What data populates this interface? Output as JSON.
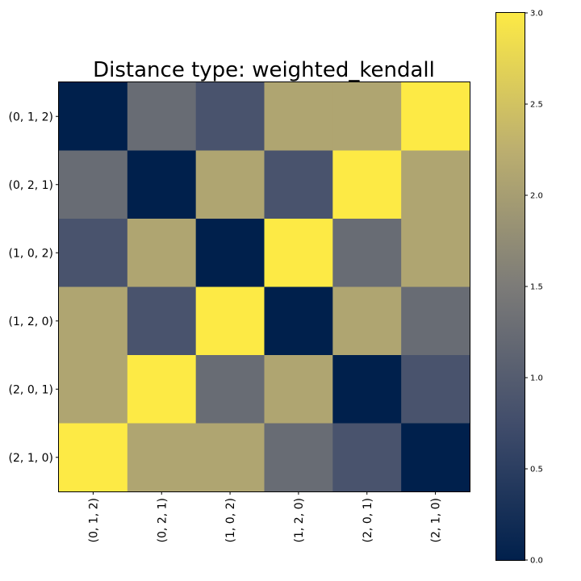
{
  "chart_data": {
    "type": "heatmap",
    "title": "Distance type: weighted_kendall",
    "x_categories": [
      "(0, 1, 2)",
      "(0, 2, 1)",
      "(1, 0, 2)",
      "(1, 2, 0)",
      "(2, 0, 1)",
      "(2, 1, 0)"
    ],
    "y_categories": [
      "(0, 1, 2)",
      "(0, 2, 1)",
      "(1, 0, 2)",
      "(1, 2, 0)",
      "(2, 0, 1)",
      "(2, 1, 0)"
    ],
    "values": [
      [
        0,
        1.25,
        0.85,
        2.1,
        2.1,
        3.0
      ],
      [
        1.25,
        0,
        2.1,
        0.85,
        3.0,
        2.1
      ],
      [
        0.85,
        2.1,
        0,
        3.0,
        1.25,
        2.1
      ],
      [
        2.1,
        0.85,
        3.0,
        0,
        2.1,
        1.25
      ],
      [
        2.1,
        3.0,
        1.25,
        2.1,
        0,
        0.85
      ],
      [
        3.0,
        2.1,
        2.1,
        1.25,
        0.85,
        0
      ]
    ],
    "colormap": "cividis",
    "color_range": [
      0.0,
      3.0
    ],
    "colorbar_ticks": [
      "0.0",
      "0.5",
      "1.0",
      "1.5",
      "2.0",
      "2.5",
      "3.0"
    ],
    "xlabel": "",
    "ylabel": "",
    "legend": "colorbar-right"
  }
}
